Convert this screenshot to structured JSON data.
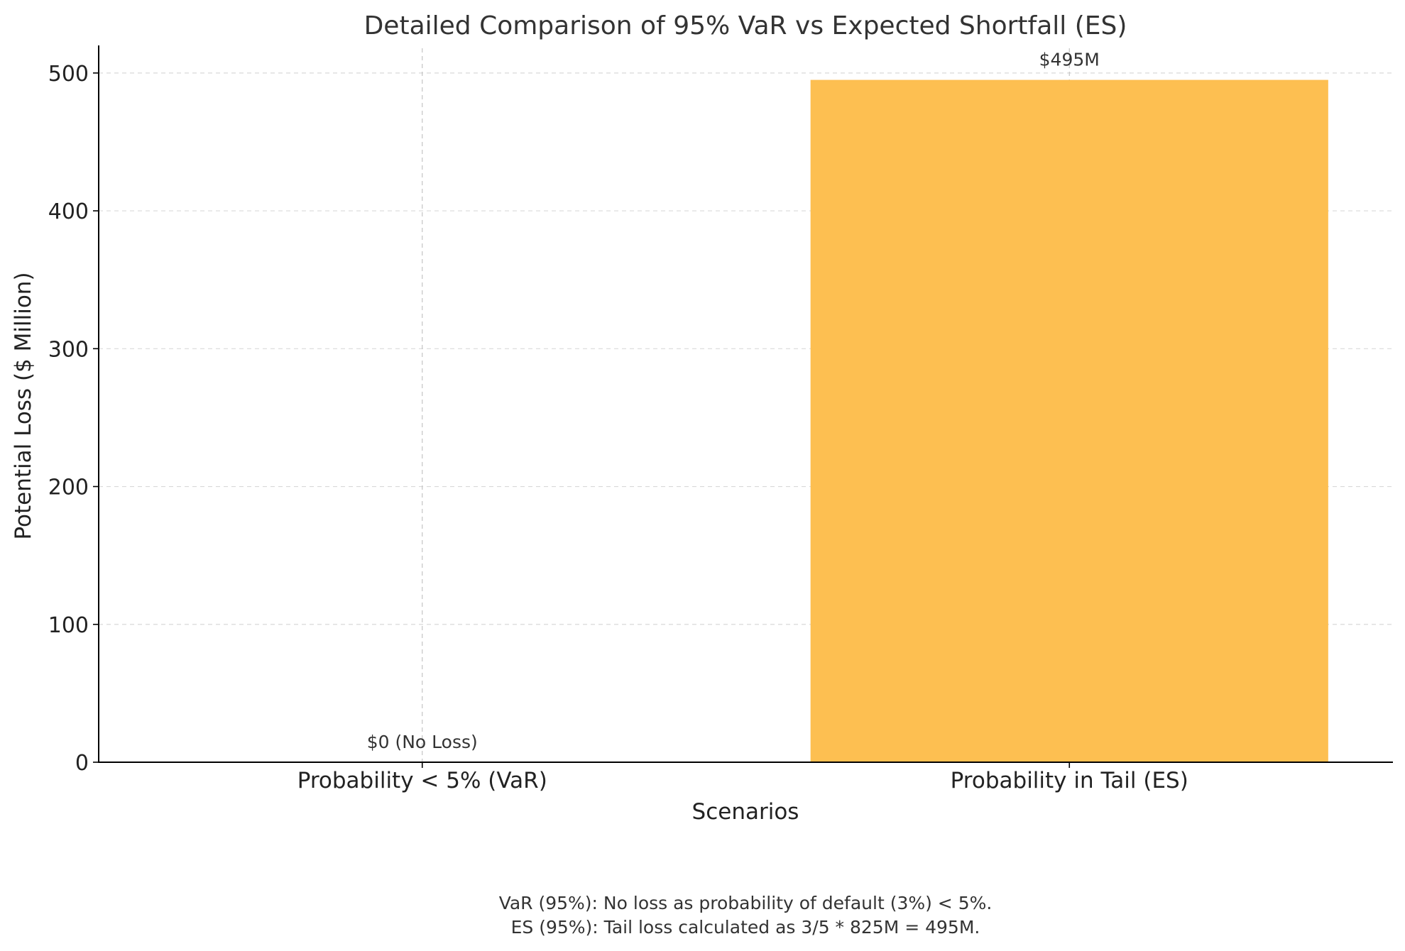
{
  "chart_data": {
    "type": "bar",
    "title": "Detailed Comparison of 95% VaR vs Expected Shortfall (ES)",
    "xlabel": "Scenarios",
    "ylabel": "Potential Loss ($ Million)",
    "categories": [
      "Probability < 5% (VaR)",
      "Probability in Tail (ES)"
    ],
    "values": [
      0,
      495
    ],
    "bar_labels": [
      "$0 (No Loss)",
      "$495M"
    ],
    "bar_colors": [
      "#8fbcd4",
      "#fdbf51"
    ],
    "ylim": [
      0,
      520
    ],
    "yticks": [
      0,
      100,
      200,
      300,
      400,
      500
    ],
    "grid": true,
    "legend": "none"
  },
  "footnotes": [
    "VaR (95%): No loss as probability of default (3%) < 5%.",
    "ES (95%): Tail loss calculated as 3/5 * 825M = 495M."
  ],
  "colors": {
    "axis": "#000000",
    "grid": "#d9d9d9",
    "text": "#222222",
    "es_bar": "#fdbf51"
  }
}
